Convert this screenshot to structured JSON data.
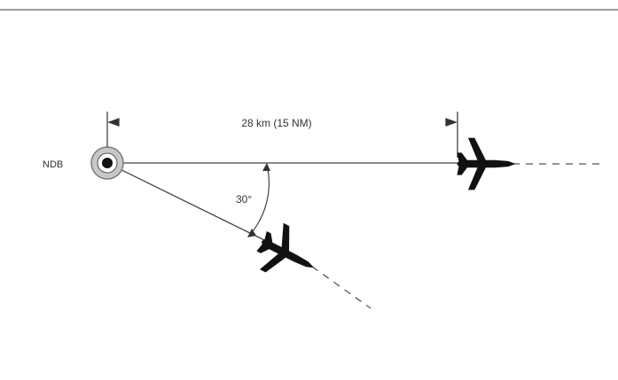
{
  "labels": {
    "station": "NDB",
    "distance": "28 km (15 NM)",
    "angle": "30°"
  },
  "colors": {
    "line": "#444444",
    "rule": "#7a7a7a",
    "station_fill": "#c8c8c8",
    "aircraft": "#111111"
  },
  "icons": {
    "station": "ndb-beacon-icon",
    "aircraft": "aircraft-icon"
  }
}
